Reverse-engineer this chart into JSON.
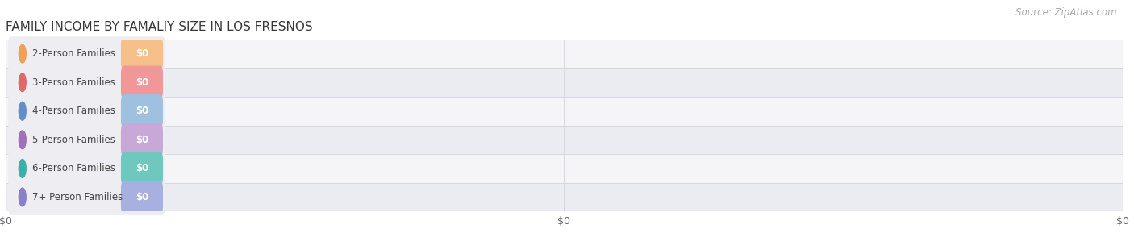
{
  "title": "FAMILY INCOME BY FAMALIY SIZE IN LOS FRESNOS",
  "source": "Source: ZipAtlas.com",
  "categories": [
    "2-Person Families",
    "3-Person Families",
    "4-Person Families",
    "5-Person Families",
    "6-Person Families",
    "7+ Person Families"
  ],
  "values": [
    0,
    0,
    0,
    0,
    0,
    0
  ],
  "bar_colors": [
    "#f5c08a",
    "#f09898",
    "#a0c0e0",
    "#c8a8d8",
    "#6ec8be",
    "#a8b0e0"
  ],
  "circle_colors": [
    "#f0a050",
    "#e06868",
    "#6090cc",
    "#a070b8",
    "#3ab0a8",
    "#8880c8"
  ],
  "row_bg_colors": [
    "#f5f5f8",
    "#ebebf2"
  ],
  "label_bg_color": "#f0eff5",
  "label_color": "#444444",
  "value_label_color": "#ffffff",
  "title_color": "#383838",
  "source_color": "#aaaaaa",
  "background_color": "#ffffff",
  "title_fontsize": 11,
  "label_fontsize": 8.5,
  "source_fontsize": 8.5,
  "bar_height": 0.6,
  "xlim_max": 100,
  "xtick_positions": [
    0,
    50,
    100
  ],
  "xtick_labels": [
    "$0",
    "$0",
    "$0"
  ]
}
